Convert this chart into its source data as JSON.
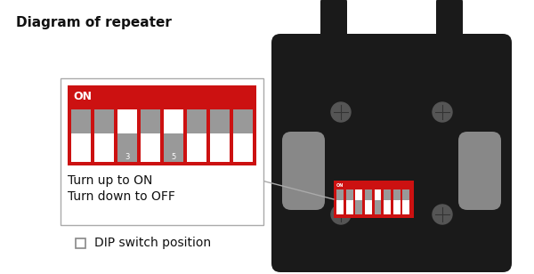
{
  "title": "Diagram of repeater",
  "bg_color": "#ffffff",
  "dip_red": "#cc1111",
  "dip_white": "#ffffff",
  "dip_gray": "#999999",
  "switch_states": [
    0,
    0,
    1,
    0,
    1,
    0,
    0,
    0
  ],
  "text_turn_on": "Turn up to ON",
  "text_turn_off": "Turn down to OFF",
  "text_dip": "DIP switch position",
  "device_color": "#1a1a1a",
  "mount_color": "#888888",
  "screw_color": "#555555",
  "callout_edge": "#aaaaaa",
  "title_fontsize": 11,
  "body_fontsize": 9,
  "dip_label_fontsize": 5
}
